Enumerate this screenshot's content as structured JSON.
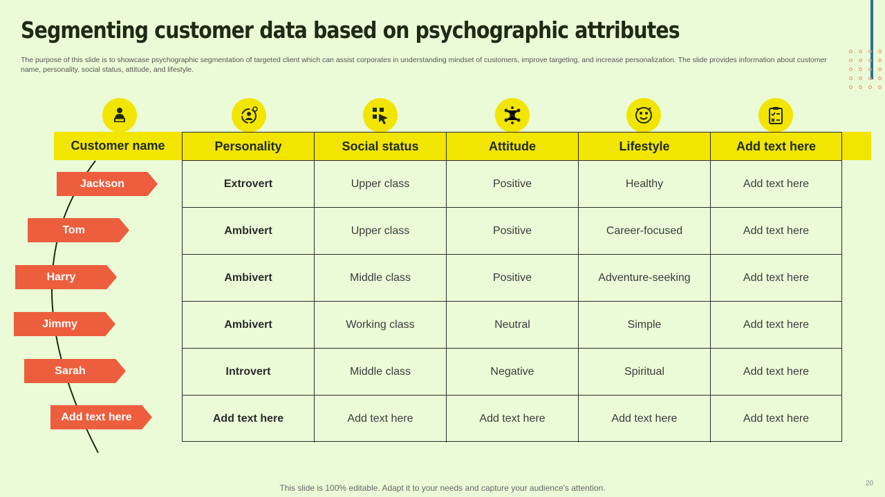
{
  "slide": {
    "title": "Segmenting customer data based on psychographic attributes",
    "subtitle": "The purpose of this slide is to showcase psychographic segmentation of targeted client which can assist corporates in understanding mindset of customers, improve targeting, and increase personalization. The slide provides information about customer name, personality, social status, attitude, and lifestyle.",
    "footer": "This slide is 100% editable. Adapt it to your needs and capture your audience's attention.",
    "page_number": "20"
  },
  "colors": {
    "background": "#ebfbd8",
    "header_yellow": "#f2e500",
    "tag_orange": "#ec5e3d",
    "accent_blue": "#2f6f8f"
  },
  "table": {
    "headers": [
      "Customer name",
      "Personality",
      "Social status",
      "Attitude",
      "Lifestyle",
      "Add text here"
    ],
    "header_icons": [
      "user-laptop-icon",
      "personality-cycle-icon",
      "social-status-icon",
      "attitude-network-icon",
      "lifestyle-emotions-icon",
      "clipboard-checklist-icon"
    ],
    "rows": [
      {
        "name": "Jackson",
        "cells": [
          "Extrovert",
          "Upper class",
          "Positive",
          "Healthy",
          "Add text here"
        ]
      },
      {
        "name": "Tom",
        "cells": [
          "Ambivert",
          "Upper class",
          "Positive",
          "Career-focused",
          "Add text here"
        ]
      },
      {
        "name": "Harry",
        "cells": [
          "Ambivert",
          "Middle class",
          "Positive",
          "Adventure-seeking",
          "Add text here"
        ]
      },
      {
        "name": "Jimmy",
        "cells": [
          "Ambivert",
          "Working class",
          "Neutral",
          "Simple",
          "Add text here"
        ]
      },
      {
        "name": "Sarah",
        "cells": [
          "Introvert",
          "Middle class",
          "Negative",
          "Spiritual",
          "Add text here"
        ]
      },
      {
        "name": "Add text here",
        "cells": [
          "Add text here",
          "Add text here",
          "Add text here",
          "Add text here",
          "Add text here"
        ]
      }
    ]
  }
}
